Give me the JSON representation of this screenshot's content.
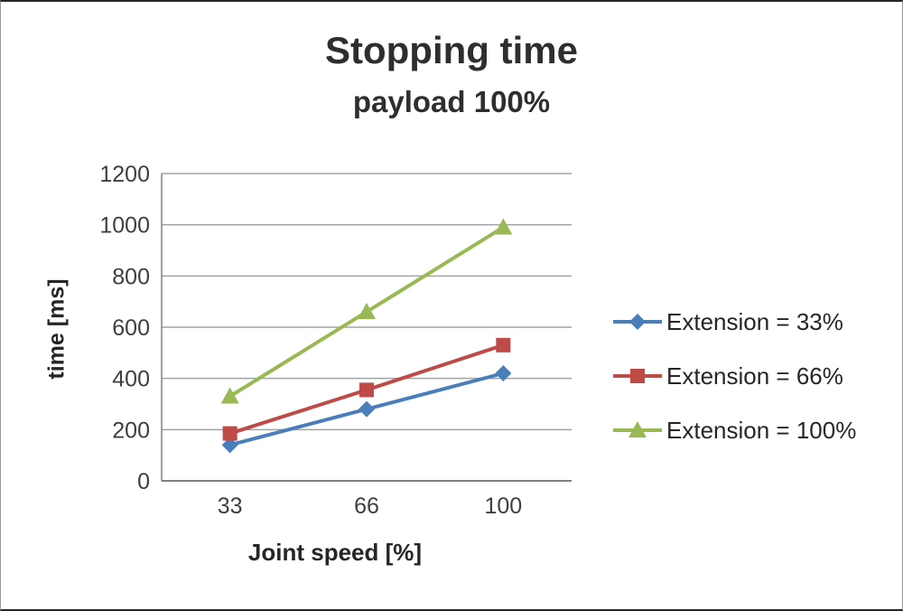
{
  "title": "Stopping time",
  "subtitle": "payload 100%",
  "chart_data": {
    "type": "line",
    "categories": [
      "33",
      "66",
      "100"
    ],
    "series": [
      {
        "name": "Extension = 33%",
        "color": "#4A7EBB",
        "marker": "diamond",
        "values": [
          140,
          280,
          420
        ]
      },
      {
        "name": "Extension = 66%",
        "color": "#BE4B48",
        "marker": "square",
        "values": [
          185,
          355,
          530
        ]
      },
      {
        "name": "Extension = 100%",
        "color": "#98B954",
        "marker": "triangle",
        "values": [
          330,
          660,
          990
        ]
      }
    ],
    "xlabel": "Joint speed [%]",
    "ylabel": "time [ms]",
    "ylim": [
      0,
      1200
    ],
    "ytick_step": 200,
    "grid": true,
    "legend_position": "right",
    "colors": {
      "gridline": "#a3a3a3",
      "axis": "#808080",
      "tick_text": "#3f3f3f"
    }
  }
}
